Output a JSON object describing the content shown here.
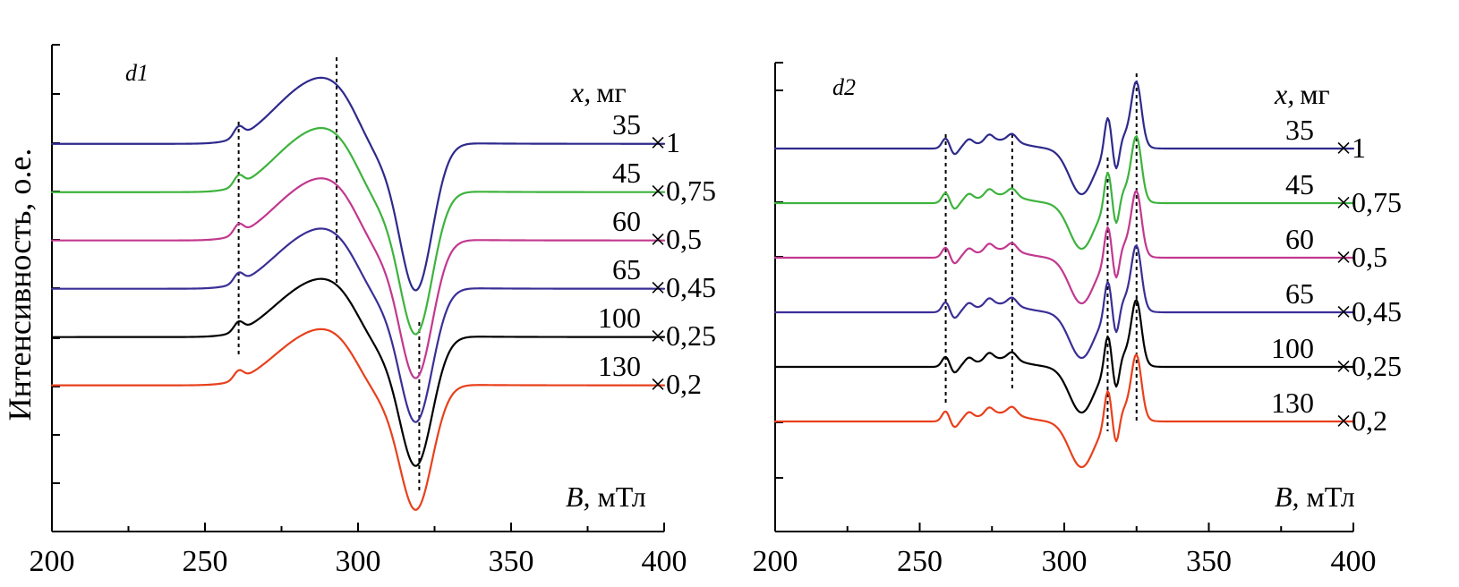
{
  "figure": {
    "ylabel": "Интенсивность, о.е."
  },
  "chart_data": [
    {
      "type": "line",
      "panel_label": "d1",
      "xlabel": "B,",
      "xlabel_unit": "мТл",
      "xlim": [
        200,
        400
      ],
      "x_ticks": [
        200,
        250,
        300,
        350,
        400
      ],
      "x_tick_labels": [
        "200",
        "250",
        "300",
        "350",
        "400"
      ],
      "legend_header_var": "x,",
      "legend_header_unit": "мг",
      "guides_x": [
        261,
        293,
        320
      ],
      "series": [
        {
          "name": "35",
          "scale": "×1",
          "color": "#2e2a8c",
          "baseline": 0.9,
          "amp": 1.0
        },
        {
          "name": "45",
          "scale": "×0,75",
          "color": "#3db33d",
          "baseline": 0.0,
          "amp": 1.0
        },
        {
          "name": "60",
          "scale": "×0,5",
          "color": "#c2388f",
          "baseline": -0.9,
          "amp": 1.0
        },
        {
          "name": "65",
          "scale": "×0,45",
          "color": "#3a2f96",
          "baseline": -1.8,
          "amp": 1.0
        },
        {
          "name": "100",
          "scale": "×0,25",
          "color": "#000000",
          "baseline": -2.7,
          "amp": 1.0
        },
        {
          "name": "130",
          "scale": "×0,2",
          "color": "#e8401c",
          "baseline": -3.6,
          "amp": 1.0
        }
      ]
    },
    {
      "type": "line",
      "panel_label": "d2",
      "xlabel": "B,",
      "xlabel_unit": "мТл",
      "xlim": [
        200,
        400
      ],
      "x_ticks": [
        200,
        250,
        300,
        350,
        400
      ],
      "x_tick_labels": [
        "200",
        "250",
        "300",
        "350",
        "400"
      ],
      "legend_header_var": "x,",
      "legend_header_unit": "мг",
      "guides_x": [
        259,
        282,
        315,
        325
      ],
      "series": [
        {
          "name": "35",
          "scale": "×1",
          "color": "#2e2a8c",
          "baseline": 0.0
        },
        {
          "name": "45",
          "scale": "×0,75",
          "color": "#3db33d",
          "baseline": -1.0
        },
        {
          "name": "60",
          "scale": "×0,5",
          "color": "#c2388f",
          "baseline": -2.0
        },
        {
          "name": "65",
          "scale": "×0,45",
          "color": "#3a2f96",
          "baseline": -3.0
        },
        {
          "name": "100",
          "scale": "×0,25",
          "color": "#000000",
          "baseline": -4.0
        },
        {
          "name": "130",
          "scale": "×0,2",
          "color": "#e8401c",
          "baseline": -5.0
        }
      ]
    }
  ]
}
